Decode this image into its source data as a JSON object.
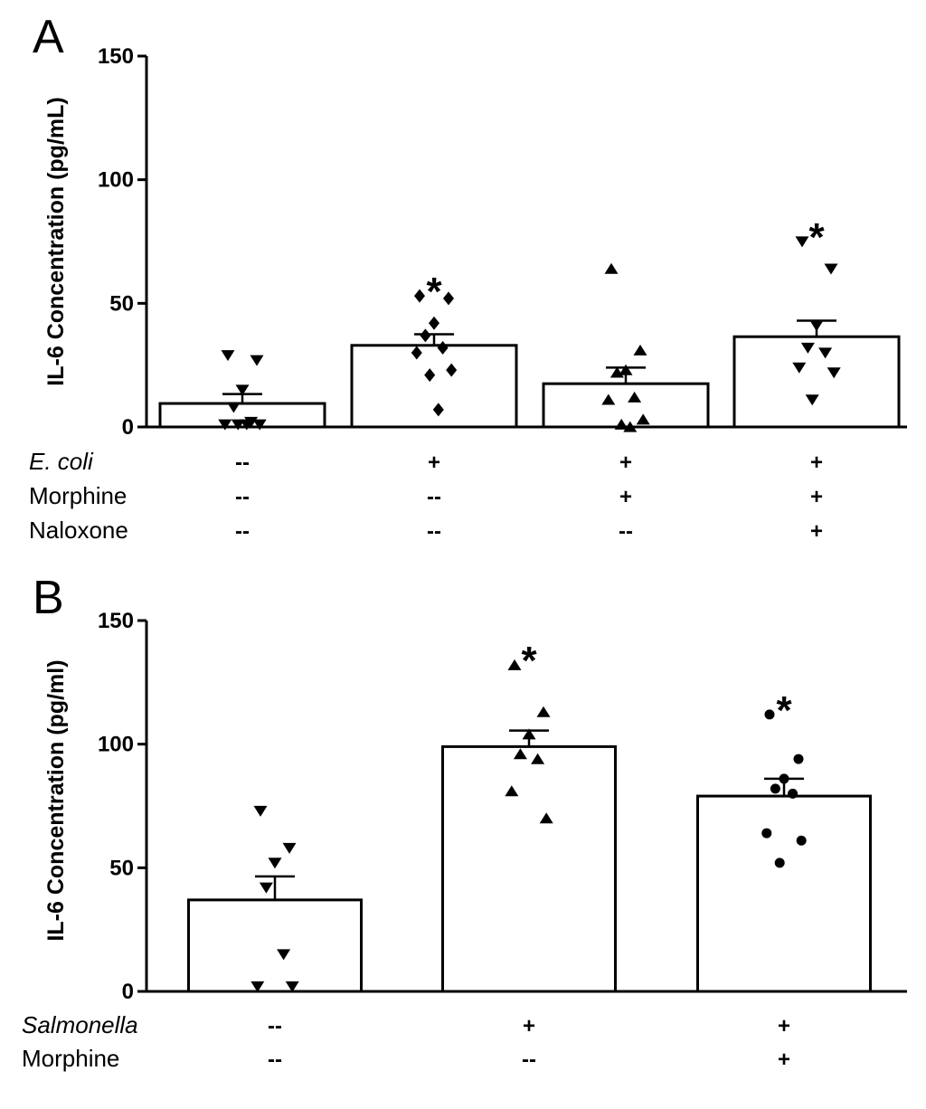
{
  "chart_data": [
    {
      "type": "bar",
      "panel": "A",
      "ylabel": "IL-6 Concentration (pg/mL)",
      "ylim": [
        0,
        150
      ],
      "yticks": [
        0,
        50,
        100,
        150
      ],
      "categories": [
        "1",
        "2",
        "3",
        "4"
      ],
      "values": [
        9.5,
        33,
        17.5,
        36.5
      ],
      "errors": [
        3.8,
        4.5,
        6.5,
        6.5
      ],
      "significance": [
        "",
        "*",
        "",
        "*"
      ],
      "markers": [
        "triangle-down",
        "diamond",
        "triangle-up",
        "triangle-down"
      ],
      "points": [
        [
          29,
          27,
          15,
          8,
          2,
          1,
          1,
          1,
          1
        ],
        [
          53,
          52,
          42,
          37,
          32,
          30,
          23,
          21,
          7
        ],
        [
          64,
          31,
          23,
          22,
          12,
          11,
          3,
          1,
          0
        ],
        [
          75,
          64,
          41,
          32,
          30,
          24,
          22,
          11
        ]
      ],
      "conditions": [
        {
          "label": "E. coli",
          "italic": true,
          "values": [
            "--",
            "+",
            "+",
            "+"
          ]
        },
        {
          "label": "Morphine",
          "italic": false,
          "values": [
            "--",
            "--",
            "+",
            "+"
          ]
        },
        {
          "label": "Naloxone",
          "italic": false,
          "values": [
            "--",
            "--",
            "--",
            "+"
          ]
        }
      ]
    },
    {
      "type": "bar",
      "panel": "B",
      "ylabel": "IL-6 Concentration (pg/ml)",
      "ylim": [
        0,
        150
      ],
      "yticks": [
        0,
        50,
        100,
        150
      ],
      "categories": [
        "1",
        "2",
        "3"
      ],
      "values": [
        37,
        99,
        79
      ],
      "errors": [
        9.5,
        6.5,
        7
      ],
      "significance": [
        "",
        "*",
        "*"
      ],
      "markers": [
        "triangle-down",
        "triangle-up",
        "circle"
      ],
      "points": [
        [
          73,
          58,
          52,
          42,
          15,
          2,
          2
        ],
        [
          132,
          113,
          104,
          96,
          94,
          81,
          70
        ],
        [
          112,
          94,
          86,
          82,
          80,
          64,
          61,
          52
        ]
      ],
      "conditions": [
        {
          "label": "Salmonella",
          "italic": true,
          "values": [
            "--",
            "+",
            "+"
          ]
        },
        {
          "label": "Morphine",
          "italic": false,
          "values": [
            "--",
            "--",
            "+"
          ]
        }
      ]
    }
  ]
}
